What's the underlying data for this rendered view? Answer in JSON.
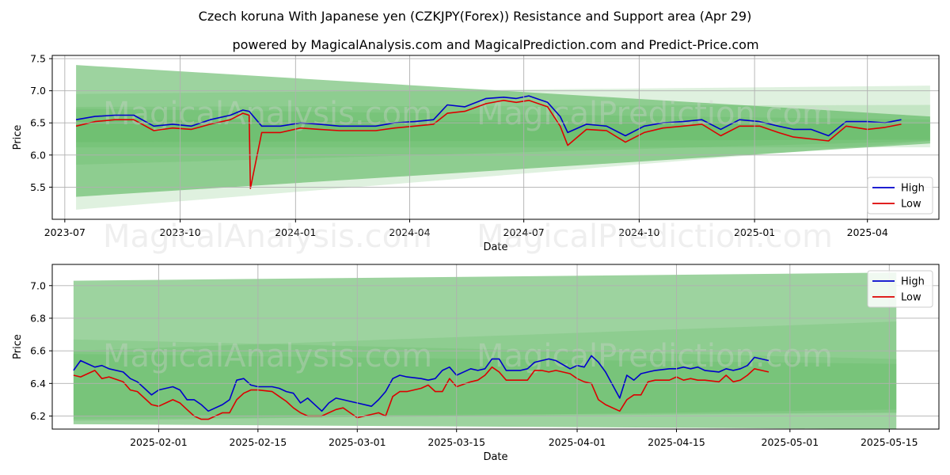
{
  "title": "Czech koruna With Japanese yen (CZKJPY(Forex)) Resistance and Support area (Apr 29)",
  "subtitle": "powered by MagicalAnalysis.com and MagicalPrediction.com and Predict-Price.com",
  "watermarks": [
    "MagicalAnalysis.com",
    "MagicalPrediction.com"
  ],
  "colors": {
    "high": "#0000cc",
    "low": "#dd0000",
    "band": "#4caf50",
    "grid": "#b0b0b0"
  },
  "chart_data": [
    {
      "type": "line",
      "xlabel": "Date",
      "ylabel": "Price",
      "ylim": [
        5.0,
        7.55
      ],
      "xlim": [
        "2023-06-21",
        "2025-05-28"
      ],
      "yticks": [
        "5.5",
        "6.0",
        "6.5",
        "7.0",
        "7.5"
      ],
      "xticks": [
        "2023-07",
        "2023-10",
        "2024-01",
        "2024-04",
        "2024-07",
        "2024-10",
        "2025-01",
        "2025-04"
      ],
      "legend": "bottom-right",
      "grid": true,
      "bands": [
        {
          "start": "2023-07-10",
          "end": "2025-05-21",
          "top": [
            7.4,
            6.6
          ],
          "bottom": [
            5.35,
            6.18
          ]
        },
        {
          "start": "2023-07-10",
          "end": "2025-05-21",
          "top": [
            6.75,
            6.78
          ],
          "bottom": [
            5.15,
            6.22
          ]
        },
        {
          "start": "2023-07-10",
          "end": "2025-05-21",
          "top": [
            6.95,
            7.08
          ],
          "bottom": [
            6.12,
            6.12
          ]
        },
        {
          "start": "2023-07-10",
          "end": "2025-05-21",
          "top": [
            6.72,
            6.55
          ],
          "bottom": [
            5.85,
            6.22
          ]
        },
        {
          "start": "2023-07-10",
          "end": "2025-05-21",
          "top": [
            6.55,
            6.5
          ],
          "bottom": [
            6.2,
            6.24
          ]
        }
      ],
      "series": [
        {
          "name": "High",
          "x": [
            "2023-07-10",
            "2023-07-25",
            "2023-08-10",
            "2023-08-25",
            "2023-09-10",
            "2023-09-25",
            "2023-10-10",
            "2023-10-25",
            "2023-11-10",
            "2023-11-20",
            "2023-11-25",
            "2023-12-05",
            "2023-12-20",
            "2024-01-05",
            "2024-01-20",
            "2024-02-05",
            "2024-02-20",
            "2024-03-05",
            "2024-03-20",
            "2024-04-05",
            "2024-04-20",
            "2024-05-01",
            "2024-05-15",
            "2024-06-01",
            "2024-06-15",
            "2024-06-25",
            "2024-07-05",
            "2024-07-20",
            "2024-07-30",
            "2024-08-05",
            "2024-08-20",
            "2024-09-05",
            "2024-09-20",
            "2024-10-05",
            "2024-10-20",
            "2024-11-05",
            "2024-11-20",
            "2024-12-05",
            "2024-12-20",
            "2025-01-05",
            "2025-01-20",
            "2025-02-01",
            "2025-02-15",
            "2025-03-01",
            "2025-03-15",
            "2025-04-01",
            "2025-04-15",
            "2025-04-28"
          ],
          "values": [
            6.55,
            6.6,
            6.62,
            6.62,
            6.45,
            6.48,
            6.45,
            6.55,
            6.62,
            6.7,
            6.68,
            6.45,
            6.45,
            6.5,
            6.48,
            6.45,
            6.45,
            6.45,
            6.5,
            6.52,
            6.55,
            6.78,
            6.75,
            6.88,
            6.9,
            6.88,
            6.92,
            6.82,
            6.6,
            6.35,
            6.48,
            6.45,
            6.3,
            6.45,
            6.5,
            6.52,
            6.55,
            6.4,
            6.55,
            6.52,
            6.45,
            6.4,
            6.4,
            6.3,
            6.52,
            6.52,
            6.5,
            6.55
          ]
        },
        {
          "name": "Low",
          "x": [
            "2023-07-10",
            "2023-07-25",
            "2023-08-10",
            "2023-08-25",
            "2023-09-10",
            "2023-09-25",
            "2023-10-10",
            "2023-10-25",
            "2023-11-10",
            "2023-11-20",
            "2023-11-25",
            "2023-11-26",
            "2023-12-05",
            "2023-12-20",
            "2024-01-05",
            "2024-01-20",
            "2024-02-05",
            "2024-02-20",
            "2024-03-05",
            "2024-03-20",
            "2024-04-05",
            "2024-04-20",
            "2024-05-01",
            "2024-05-15",
            "2024-06-01",
            "2024-06-15",
            "2024-06-25",
            "2024-07-05",
            "2024-07-20",
            "2024-07-30",
            "2024-08-05",
            "2024-08-20",
            "2024-09-05",
            "2024-09-20",
            "2024-10-05",
            "2024-10-20",
            "2024-11-05",
            "2024-11-20",
            "2024-12-05",
            "2024-12-20",
            "2025-01-05",
            "2025-01-20",
            "2025-02-01",
            "2025-02-15",
            "2025-03-01",
            "2025-03-15",
            "2025-04-01",
            "2025-04-15",
            "2025-04-28"
          ],
          "values": [
            6.45,
            6.52,
            6.55,
            6.55,
            6.38,
            6.42,
            6.4,
            6.48,
            6.55,
            6.65,
            6.62,
            5.48,
            6.35,
            6.35,
            6.42,
            6.4,
            6.38,
            6.38,
            6.38,
            6.42,
            6.45,
            6.48,
            6.65,
            6.68,
            6.8,
            6.85,
            6.82,
            6.85,
            6.75,
            6.45,
            6.15,
            6.4,
            6.38,
            6.2,
            6.35,
            6.42,
            6.45,
            6.48,
            6.3,
            6.45,
            6.45,
            6.35,
            6.28,
            6.25,
            6.22,
            6.45,
            6.4,
            6.43,
            6.48
          ]
        }
      ]
    },
    {
      "type": "line",
      "xlabel": "Date",
      "ylabel": "Price",
      "ylim": [
        6.12,
        7.13
      ],
      "xlim": [
        "2025-01-17",
        "2025-05-22"
      ],
      "yticks": [
        "6.2",
        "6.4",
        "6.6",
        "6.8",
        "7.0"
      ],
      "xticks": [
        "2025-02-01",
        "2025-02-15",
        "2025-03-01",
        "2025-03-15",
        "2025-04-01",
        "2025-04-15",
        "2025-05-01",
        "2025-05-15"
      ],
      "legend": "top-right",
      "grid": true,
      "bands": [
        {
          "start": "2025-01-20",
          "end": "2025-05-16",
          "top": [
            7.03,
            7.08
          ],
          "bottom": [
            6.15,
            6.12
          ]
        },
        {
          "start": "2025-01-20",
          "end": "2025-05-16",
          "top": [
            6.67,
            6.55
          ],
          "bottom": [
            6.17,
            6.24
          ]
        },
        {
          "start": "2025-01-20",
          "end": "2025-05-16",
          "top": [
            6.6,
            6.78
          ],
          "bottom": [
            6.18,
            6.22
          ]
        },
        {
          "start": "2025-01-20",
          "end": "2025-05-16",
          "top": [
            6.58,
            6.52
          ],
          "bottom": [
            6.2,
            6.22
          ]
        }
      ],
      "series": [
        {
          "name": "High",
          "x": [
            "2025-01-20",
            "2025-01-21",
            "2025-01-22",
            "2025-01-23",
            "2025-01-24",
            "2025-01-25",
            "2025-01-27",
            "2025-01-28",
            "2025-01-29",
            "2025-01-30",
            "2025-01-31",
            "2025-02-01",
            "2025-02-03",
            "2025-02-04",
            "2025-02-05",
            "2025-02-06",
            "2025-02-07",
            "2025-02-08",
            "2025-02-10",
            "2025-02-11",
            "2025-02-12",
            "2025-02-13",
            "2025-02-14",
            "2025-02-15",
            "2025-02-17",
            "2025-02-18",
            "2025-02-19",
            "2025-02-20",
            "2025-02-21",
            "2025-02-22",
            "2025-02-24",
            "2025-02-25",
            "2025-02-26",
            "2025-02-27",
            "2025-02-28",
            "2025-03-01",
            "2025-03-03",
            "2025-03-04",
            "2025-03-05",
            "2025-03-06",
            "2025-03-07",
            "2025-03-08",
            "2025-03-10",
            "2025-03-11",
            "2025-03-12",
            "2025-03-13",
            "2025-03-14",
            "2025-03-15",
            "2025-03-17",
            "2025-03-18",
            "2025-03-19",
            "2025-03-20",
            "2025-03-21",
            "2025-03-22",
            "2025-03-24",
            "2025-03-25",
            "2025-03-26",
            "2025-03-27",
            "2025-03-28",
            "2025-03-29",
            "2025-03-31",
            "2025-04-01",
            "2025-04-02",
            "2025-04-03",
            "2025-04-04",
            "2025-04-05",
            "2025-04-07",
            "2025-04-08",
            "2025-04-09",
            "2025-04-10",
            "2025-04-11",
            "2025-04-12",
            "2025-04-14",
            "2025-04-15",
            "2025-04-16",
            "2025-04-17",
            "2025-04-18",
            "2025-04-19",
            "2025-04-21",
            "2025-04-22",
            "2025-04-23",
            "2025-04-24",
            "2025-04-25",
            "2025-04-26",
            "2025-04-28"
          ],
          "values": [
            6.48,
            6.54,
            6.52,
            6.5,
            6.51,
            6.49,
            6.47,
            6.43,
            6.41,
            6.37,
            6.33,
            6.36,
            6.38,
            6.36,
            6.3,
            6.3,
            6.27,
            6.23,
            6.27,
            6.3,
            6.42,
            6.43,
            6.39,
            6.38,
            6.38,
            6.37,
            6.35,
            6.34,
            6.28,
            6.31,
            6.23,
            6.28,
            6.31,
            6.3,
            6.29,
            6.28,
            6.26,
            6.3,
            6.35,
            6.43,
            6.45,
            6.44,
            6.43,
            6.42,
            6.43,
            6.48,
            6.5,
            6.45,
            6.49,
            6.48,
            6.49,
            6.55,
            6.55,
            6.48,
            6.48,
            6.49,
            6.53,
            6.54,
            6.55,
            6.54,
            6.49,
            6.51,
            6.5,
            6.57,
            6.53,
            6.47,
            6.31,
            6.45,
            6.42,
            6.46,
            6.47,
            6.48,
            6.49,
            6.49,
            6.5,
            6.49,
            6.5,
            6.48,
            6.47,
            6.49,
            6.48,
            6.49,
            6.51,
            6.56,
            6.54
          ]
        },
        {
          "name": "Low",
          "x": [
            "2025-01-20",
            "2025-01-21",
            "2025-01-22",
            "2025-01-23",
            "2025-01-24",
            "2025-01-25",
            "2025-01-27",
            "2025-01-28",
            "2025-01-29",
            "2025-01-30",
            "2025-01-31",
            "2025-02-01",
            "2025-02-03",
            "2025-02-04",
            "2025-02-05",
            "2025-02-06",
            "2025-02-07",
            "2025-02-08",
            "2025-02-10",
            "2025-02-11",
            "2025-02-12",
            "2025-02-13",
            "2025-02-14",
            "2025-02-15",
            "2025-02-17",
            "2025-02-18",
            "2025-02-19",
            "2025-02-20",
            "2025-02-21",
            "2025-02-22",
            "2025-02-24",
            "2025-02-25",
            "2025-02-26",
            "2025-02-27",
            "2025-02-28",
            "2025-03-01",
            "2025-03-03",
            "2025-03-04",
            "2025-03-05",
            "2025-03-06",
            "2025-03-07",
            "2025-03-08",
            "2025-03-10",
            "2025-03-11",
            "2025-03-12",
            "2025-03-13",
            "2025-03-14",
            "2025-03-15",
            "2025-03-17",
            "2025-03-18",
            "2025-03-19",
            "2025-03-20",
            "2025-03-21",
            "2025-03-22",
            "2025-03-24",
            "2025-03-25",
            "2025-03-26",
            "2025-03-27",
            "2025-03-28",
            "2025-03-29",
            "2025-03-31",
            "2025-04-01",
            "2025-04-02",
            "2025-04-03",
            "2025-04-04",
            "2025-04-05",
            "2025-04-07",
            "2025-04-08",
            "2025-04-09",
            "2025-04-10",
            "2025-04-11",
            "2025-04-12",
            "2025-04-14",
            "2025-04-15",
            "2025-04-16",
            "2025-04-17",
            "2025-04-18",
            "2025-04-19",
            "2025-04-21",
            "2025-04-22",
            "2025-04-23",
            "2025-04-24",
            "2025-04-25",
            "2025-04-26",
            "2025-04-28"
          ],
          "values": [
            6.45,
            6.44,
            6.46,
            6.48,
            6.43,
            6.44,
            6.41,
            6.36,
            6.35,
            6.31,
            6.27,
            6.26,
            6.3,
            6.28,
            6.24,
            6.2,
            6.18,
            6.18,
            6.22,
            6.22,
            6.3,
            6.34,
            6.36,
            6.36,
            6.35,
            6.32,
            6.29,
            6.25,
            6.22,
            6.2,
            6.2,
            6.22,
            6.24,
            6.25,
            6.22,
            6.19,
            6.21,
            6.22,
            6.2,
            6.32,
            6.35,
            6.35,
            6.37,
            6.39,
            6.35,
            6.35,
            6.43,
            6.38,
            6.41,
            6.42,
            6.45,
            6.5,
            6.47,
            6.42,
            6.42,
            6.42,
            6.48,
            6.48,
            6.47,
            6.48,
            6.46,
            6.43,
            6.41,
            6.4,
            6.3,
            6.27,
            6.23,
            6.3,
            6.33,
            6.33,
            6.41,
            6.42,
            6.42,
            6.44,
            6.42,
            6.43,
            6.42,
            6.42,
            6.41,
            6.45,
            6.41,
            6.42,
            6.45,
            6.49,
            6.47
          ]
        }
      ]
    }
  ]
}
